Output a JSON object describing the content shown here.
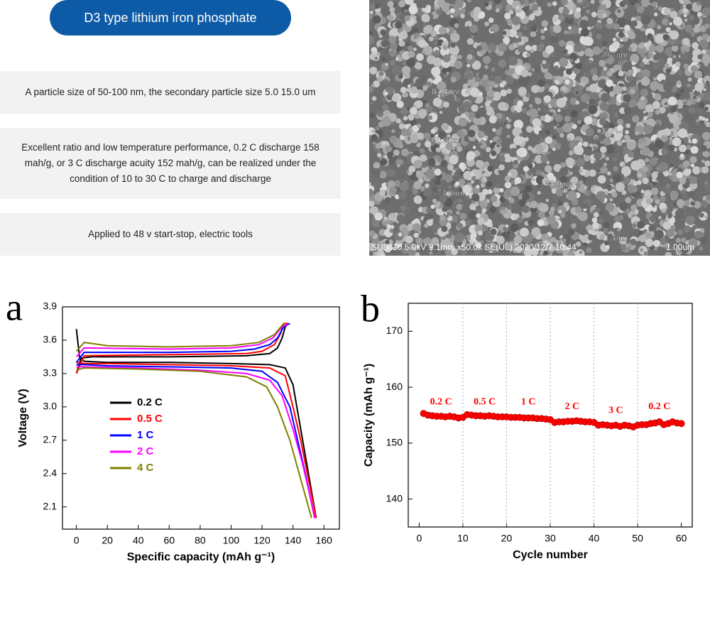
{
  "header": {
    "title": "D3 type lithium iron phosphate"
  },
  "features": [
    "A particle size of 50-100 nm, the secondary particle size 5.0 15.0 um",
    "Excellent ratio and low temperature performance, 0.2 C discharge 158 mah/g, or 3 C discharge acuity 152 mah/g, can be realized under the condition of 10 to 30 C to charge and discharge",
    "Applied to 48 v start-stop, electric tools"
  ],
  "sem_image": {
    "labels": [
      "59.7nm",
      "84.8nm",
      "60.0nm",
      "58.9nm",
      "73.0nm",
      "81.4nm"
    ],
    "caption": "SU8010 5.0kV 9.1mm x50.0k SE(UL) 2020/12/7 10:44",
    "scale": "1.00um"
  },
  "chart_data": [
    {
      "type": "line",
      "panel_label": "a",
      "x_label": "Specific capacity (mAh g⁻¹)",
      "y_label": "Voltage (V)",
      "xlim": [
        -9,
        170
      ],
      "ylim": [
        1.9,
        3.9
      ],
      "xticks": [
        0,
        20,
        40,
        60,
        80,
        100,
        120,
        140,
        160
      ],
      "yticks": [
        2.1,
        2.4,
        2.7,
        {
          "value": 3,
          "label": "3.0"
        },
        3.3,
        3.6,
        3.9
      ],
      "legend": "center left",
      "series": [
        {
          "name": "0.2 C",
          "color": "#000000",
          "x": [
            0,
            2,
            5,
            20,
            60,
            100,
            125,
            135,
            140,
            145,
            150,
            155,
            null,
            0,
            3,
            10,
            60,
            110,
            125,
            130,
            133,
            135,
            136,
            137
          ],
          "values": [
            3.7,
            3.45,
            3.41,
            3.4,
            3.4,
            3.39,
            3.38,
            3.35,
            3.2,
            2.8,
            2.4,
            2.0,
            null,
            3.3,
            3.44,
            3.45,
            3.45,
            3.46,
            3.48,
            3.53,
            3.62,
            3.72,
            3.75,
            3.75
          ]
        },
        {
          "name": "0.5 C",
          "color": "#ff0000",
          "x": [
            0,
            5,
            20,
            60,
            100,
            125,
            135,
            140,
            145,
            150,
            155,
            null,
            0,
            5,
            60,
            110,
            120,
            128,
            132,
            134,
            136
          ],
          "values": [
            3.4,
            3.39,
            3.39,
            3.38,
            3.37,
            3.35,
            3.28,
            3.0,
            2.7,
            2.35,
            2.0,
            null,
            3.3,
            3.46,
            3.47,
            3.48,
            3.5,
            3.56,
            3.66,
            3.75,
            3.75
          ]
        },
        {
          "name": "1 C",
          "color": "#0000ff",
          "x": [
            0,
            5,
            20,
            60,
            100,
            120,
            130,
            138,
            143,
            148,
            154,
            null,
            0,
            5,
            60,
            100,
            115,
            125,
            130,
            134,
            138
          ],
          "values": [
            3.38,
            3.38,
            3.37,
            3.36,
            3.35,
            3.32,
            3.22,
            3.0,
            2.7,
            2.4,
            2.0,
            null,
            3.4,
            3.49,
            3.49,
            3.5,
            3.52,
            3.56,
            3.62,
            3.72,
            3.75
          ]
        },
        {
          "name": "2 C",
          "color": "#ff00ff",
          "x": [
            0,
            5,
            40,
            80,
            110,
            125,
            133,
            140,
            146,
            151,
            154,
            null,
            0,
            5,
            60,
            100,
            118,
            127,
            133,
            137
          ],
          "values": [
            3.36,
            3.36,
            3.35,
            3.33,
            3.3,
            3.24,
            3.1,
            2.8,
            2.5,
            2.2,
            2.0,
            null,
            3.45,
            3.53,
            3.52,
            3.53,
            3.56,
            3.62,
            3.72,
            3.75
          ]
        },
        {
          "name": "4 C",
          "color": "#808000",
          "x": [
            0,
            5,
            40,
            80,
            110,
            123,
            130,
            138,
            145,
            152,
            null,
            0,
            5,
            20,
            60,
            100,
            118,
            128,
            134
          ],
          "values": [
            3.33,
            3.35,
            3.34,
            3.32,
            3.27,
            3.18,
            3.0,
            2.7,
            2.35,
            2.0,
            null,
            3.5,
            3.58,
            3.55,
            3.54,
            3.55,
            3.58,
            3.65,
            3.75
          ]
        }
      ]
    },
    {
      "type": "line",
      "panel_label": "b",
      "x_label": "Cycle number",
      "y_label": "Capacity (mAh g⁻¹)",
      "xlim": [
        -2.5,
        62.5
      ],
      "ylim": [
        135,
        175
      ],
      "xticks": [
        0,
        10,
        20,
        30,
        40,
        50,
        60
      ],
      "yticks": [
        140,
        150,
        160,
        170
      ],
      "vlines": [
        10,
        20,
        30,
        40,
        50
      ],
      "color": "#ff0000",
      "x": [
        1,
        2,
        3,
        4,
        5,
        6,
        7,
        8,
        9,
        10,
        11,
        12,
        13,
        14,
        15,
        16,
        17,
        18,
        19,
        20,
        21,
        22,
        23,
        24,
        25,
        26,
        27,
        28,
        29,
        30,
        31,
        32,
        33,
        34,
        35,
        36,
        37,
        38,
        39,
        40,
        41,
        42,
        43,
        44,
        45,
        46,
        47,
        48,
        49,
        50,
        51,
        52,
        53,
        54,
        55,
        56,
        57,
        58,
        59,
        60
      ],
      "values": [
        155.3,
        155.0,
        154.9,
        154.8,
        154.8,
        154.7,
        154.8,
        154.7,
        154.5,
        154.6,
        155.1,
        155.0,
        154.9,
        154.9,
        154.8,
        154.9,
        154.8,
        154.7,
        154.7,
        154.7,
        154.6,
        154.6,
        154.6,
        154.5,
        154.5,
        154.5,
        154.4,
        154.4,
        154.3,
        154.2,
        153.7,
        153.8,
        153.8,
        153.9,
        153.9,
        154.0,
        153.9,
        153.8,
        153.8,
        153.7,
        153.2,
        153.3,
        153.2,
        153.1,
        153.2,
        153.0,
        153.2,
        153.1,
        152.9,
        153.2,
        153.3,
        153.3,
        153.5,
        153.6,
        153.8,
        153.3,
        153.5,
        153.8,
        153.6,
        153.5
      ],
      "annotations": [
        {
          "text": "0.2 C",
          "x": 5,
          "y": 157.3
        },
        {
          "text": "0.5 C",
          "x": 15,
          "y": 157.3
        },
        {
          "text": "1 C",
          "x": 25,
          "y": 157.3
        },
        {
          "text": "2 C",
          "x": 35,
          "y": 156.5
        },
        {
          "text": "3 C",
          "x": 45,
          "y": 155.8
        },
        {
          "text": "0.2 C",
          "x": 55,
          "y": 156.5
        }
      ]
    }
  ]
}
